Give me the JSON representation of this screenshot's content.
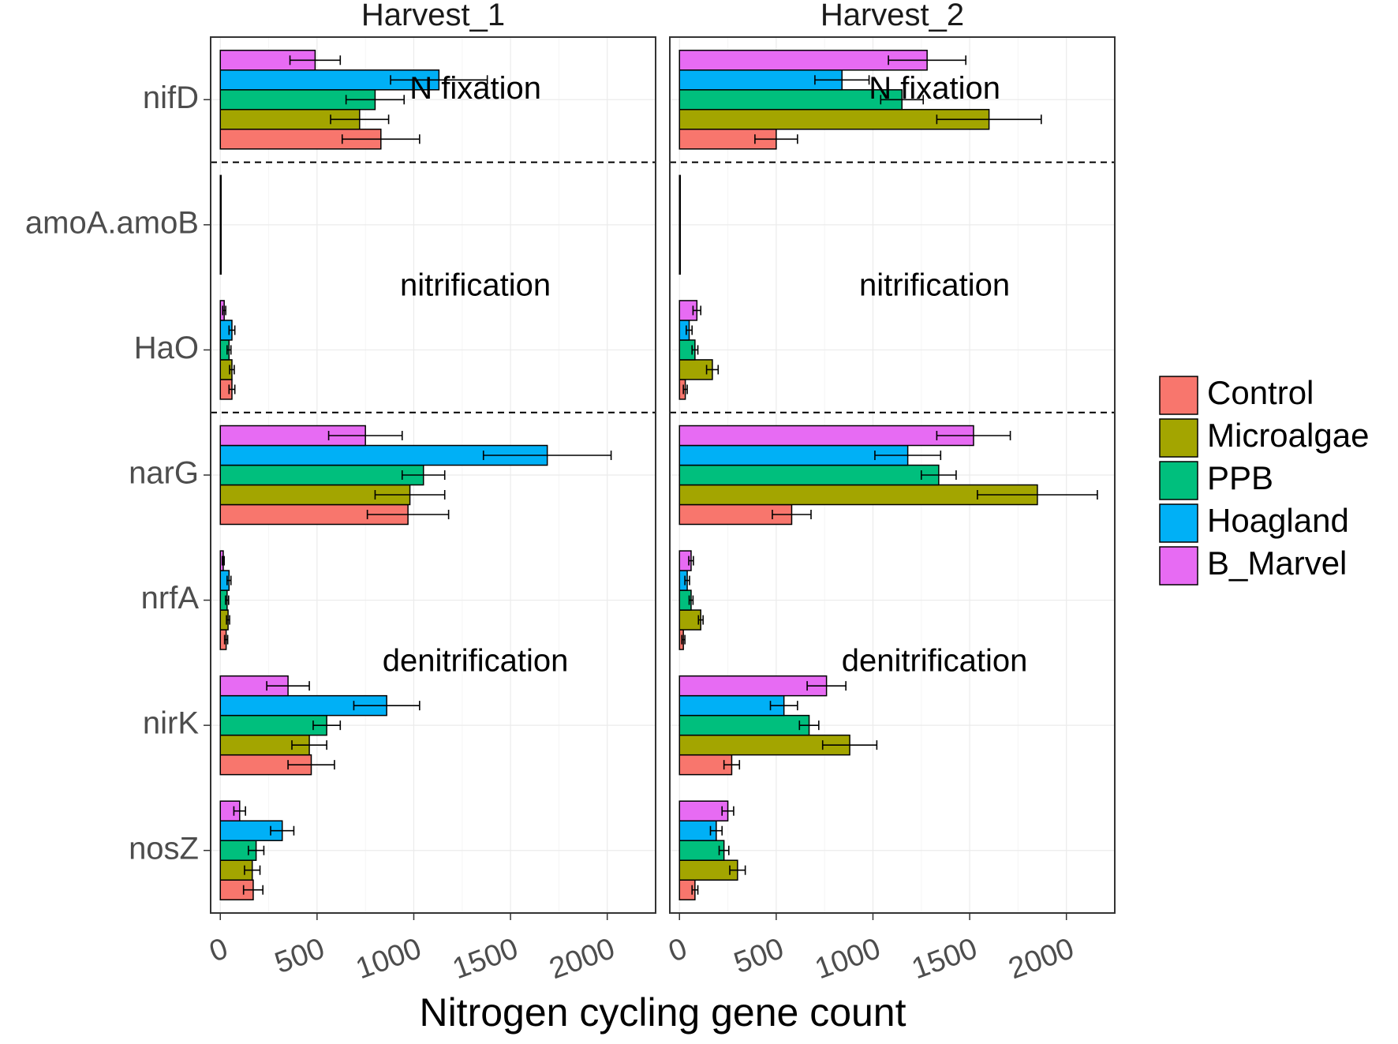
{
  "chart_data": {
    "type": "bar",
    "orientation": "horizontal",
    "xlabel": "Nitrogen cycling gene count",
    "ylabel": "",
    "xlim": [
      -50,
      2250
    ],
    "xticks": [
      0,
      500,
      1000,
      1500,
      2000
    ],
    "xtick_labels": [
      "0",
      "500",
      "1000",
      "1500",
      "2000"
    ],
    "grid": true,
    "legend_position": "right",
    "facets": [
      "Harvest_1",
      "Harvest_2"
    ],
    "genes": [
      "nifD",
      "amoA.amoB",
      "HaO",
      "narG",
      "nrfA",
      "nirK",
      "nosZ"
    ],
    "treatments": [
      "Control",
      "Microalgae",
      "PPB",
      "Hoagland",
      "B_Marvel"
    ],
    "colors": {
      "Control": "#F8766D",
      "Microalgae": "#A3A500",
      "PPB": "#00BF7D",
      "Hoagland": "#00B0F6",
      "B_Marvel": "#E76BF3"
    },
    "groups": [
      {
        "label": "N fixation",
        "genes": [
          "nifD"
        ]
      },
      {
        "label": "nitrification",
        "genes": [
          "amoA.amoB",
          "HaO"
        ]
      },
      {
        "label": "denitrification",
        "genes": [
          "narG",
          "nrfA",
          "nirK",
          "nosZ"
        ]
      }
    ],
    "panels": [
      {
        "name": "Harvest_1",
        "values": {
          "nifD": {
            "Control": 830,
            "Microalgae": 720,
            "PPB": 800,
            "Hoagland": 1130,
            "B_Marvel": 490
          },
          "amoA.amoB": {
            "Control": 2,
            "Microalgae": 2,
            "PPB": 2,
            "Hoagland": 2,
            "B_Marvel": 2
          },
          "HaO": {
            "Control": 60,
            "Microalgae": 60,
            "PPB": 45,
            "Hoagland": 60,
            "B_Marvel": 20
          },
          "narG": {
            "Control": 970,
            "Microalgae": 980,
            "PPB": 1050,
            "Hoagland": 1690,
            "B_Marvel": 750
          },
          "nrfA": {
            "Control": 30,
            "Microalgae": 40,
            "PPB": 35,
            "Hoagland": 45,
            "B_Marvel": 15
          },
          "nirK": {
            "Control": 470,
            "Microalgae": 460,
            "PPB": 550,
            "Hoagland": 860,
            "B_Marvel": 350
          },
          "nosZ": {
            "Control": 170,
            "Microalgae": 165,
            "PPB": 185,
            "Hoagland": 320,
            "B_Marvel": 100
          }
        },
        "errors": {
          "nifD": {
            "Control": 200,
            "Microalgae": 150,
            "PPB": 150,
            "Hoagland": 250,
            "B_Marvel": 130
          },
          "amoA.amoB": {
            "Control": 0,
            "Microalgae": 0,
            "PPB": 0,
            "Hoagland": 0,
            "B_Marvel": 0
          },
          "HaO": {
            "Control": 15,
            "Microalgae": 12,
            "PPB": 10,
            "Hoagland": 15,
            "B_Marvel": 8
          },
          "narG": {
            "Control": 210,
            "Microalgae": 180,
            "PPB": 110,
            "Hoagland": 330,
            "B_Marvel": 190
          },
          "nrfA": {
            "Control": 8,
            "Microalgae": 8,
            "PPB": 8,
            "Hoagland": 10,
            "B_Marvel": 5
          },
          "nirK": {
            "Control": 120,
            "Microalgae": 90,
            "PPB": 70,
            "Hoagland": 170,
            "B_Marvel": 110
          },
          "nosZ": {
            "Control": 50,
            "Microalgae": 40,
            "PPB": 40,
            "Hoagland": 60,
            "B_Marvel": 30
          }
        }
      },
      {
        "name": "Harvest_2",
        "values": {
          "nifD": {
            "Control": 500,
            "Microalgae": 1600,
            "PPB": 1150,
            "Hoagland": 840,
            "B_Marvel": 1280
          },
          "amoA.amoB": {
            "Control": 2,
            "Microalgae": 2,
            "PPB": 2,
            "Hoagland": 2,
            "B_Marvel": 2
          },
          "HaO": {
            "Control": 30,
            "Microalgae": 170,
            "PPB": 80,
            "Hoagland": 50,
            "B_Marvel": 90
          },
          "narG": {
            "Control": 580,
            "Microalgae": 1850,
            "PPB": 1340,
            "Hoagland": 1180,
            "B_Marvel": 1520
          },
          "nrfA": {
            "Control": 20,
            "Microalgae": 110,
            "PPB": 60,
            "Hoagland": 40,
            "B_Marvel": 60
          },
          "nirK": {
            "Control": 270,
            "Microalgae": 880,
            "PPB": 670,
            "Hoagland": 540,
            "B_Marvel": 760
          },
          "nosZ": {
            "Control": 80,
            "Microalgae": 300,
            "PPB": 230,
            "Hoagland": 190,
            "B_Marvel": 250
          }
        },
        "errors": {
          "nifD": {
            "Control": 110,
            "Microalgae": 270,
            "PPB": 110,
            "Hoagland": 140,
            "B_Marvel": 200
          },
          "amoA.amoB": {
            "Control": 0,
            "Microalgae": 0,
            "PPB": 0,
            "Hoagland": 0,
            "B_Marvel": 0
          },
          "HaO": {
            "Control": 10,
            "Microalgae": 30,
            "PPB": 15,
            "Hoagland": 15,
            "B_Marvel": 20
          },
          "narG": {
            "Control": 100,
            "Microalgae": 310,
            "PPB": 90,
            "Hoagland": 170,
            "B_Marvel": 190
          },
          "nrfA": {
            "Control": 8,
            "Microalgae": 12,
            "PPB": 10,
            "Hoagland": 12,
            "B_Marvel": 12
          },
          "nirK": {
            "Control": 40,
            "Microalgae": 140,
            "PPB": 50,
            "Hoagland": 70,
            "B_Marvel": 100
          },
          "nosZ": {
            "Control": 15,
            "Microalgae": 40,
            "PPB": 25,
            "Hoagland": 30,
            "B_Marvel": 30
          }
        }
      }
    ]
  }
}
